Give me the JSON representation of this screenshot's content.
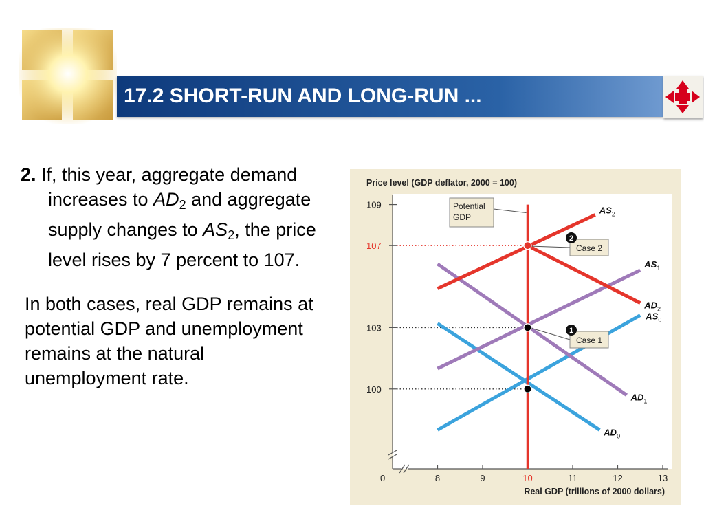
{
  "slide": {
    "title": "17.2 SHORT-RUN AND LONG-RUN ...",
    "para1": {
      "number": "2.",
      "t1": " If, this year, aggregate demand increases to ",
      "ad": "AD",
      "ad_sub": "2",
      "t2": " and aggregate supply changes to ",
      "as": "AS",
      "as_sub": "2",
      "t3": ", the price level rises by 7 percent to 107."
    },
    "para2": "In both cases, real GDP remains at potential GDP and unemployment remains at the natural unemployment rate."
  },
  "nav": {
    "icon": "four-arrows-icon",
    "color": "#d6001c"
  },
  "chart_data": {
    "type": "line",
    "ylabel": "Price level (GDP deflator, 2000 = 100)",
    "xlabel": "Real GDP (trillions of 2000 dollars)",
    "x_ticks": [
      "8",
      "9",
      "10",
      "11",
      "12",
      "13"
    ],
    "x_highlight": "10",
    "y_ticks": [
      {
        "value": 109,
        "label": "109",
        "highlight": false
      },
      {
        "value": 107,
        "label": "107",
        "highlight": true
      },
      {
        "value": 103,
        "label": "103",
        "highlight": false
      },
      {
        "value": 100,
        "label": "100",
        "highlight": false
      }
    ],
    "origin_label": "0",
    "xlim": [
      7,
      13
    ],
    "ylim": [
      96.1,
      109
    ],
    "series": [
      {
        "name": "AS",
        "sub": "0",
        "color": "#3ba3dd",
        "x": [
          8,
          12.5
        ],
        "y": [
          98.0,
          103.6
        ]
      },
      {
        "name": "AD",
        "sub": "0",
        "color": "#3ba3dd",
        "x": [
          8,
          11.6
        ],
        "y": [
          103.2,
          98.0
        ]
      },
      {
        "name": "AS",
        "sub": "1",
        "color": "#9f7ab9",
        "x": [
          8,
          12.5
        ],
        "y": [
          101.0,
          105.8
        ]
      },
      {
        "name": "AD",
        "sub": "1",
        "color": "#9f7ab9",
        "x": [
          8,
          12.2
        ],
        "y": [
          106.1,
          99.7
        ]
      },
      {
        "name": "AS",
        "sub": "2",
        "color": "#e5352b",
        "x": [
          8,
          11.5
        ],
        "y": [
          104.9,
          108.5
        ]
      },
      {
        "name": "AD",
        "sub": "2",
        "color": "#e5352b",
        "x": [
          10,
          12.5
        ],
        "y": [
          107,
          104.2
        ]
      },
      {
        "name": "Potential GDP",
        "sub": "",
        "color": "#e5352b",
        "x": [
          10,
          10
        ],
        "y": [
          96.1,
          109
        ]
      }
    ],
    "equilibria": [
      {
        "x": 10,
        "y": 107,
        "color": "#e5352b"
      },
      {
        "x": 10,
        "y": 103,
        "color": "#000000"
      },
      {
        "x": 10,
        "y": 100,
        "color": "#000000"
      }
    ],
    "annotations": [
      {
        "lines": [
          "Potential",
          "GDP"
        ]
      },
      {
        "number": "2",
        "label": "Case 2"
      },
      {
        "number": "1",
        "label": "Case 1"
      }
    ]
  }
}
